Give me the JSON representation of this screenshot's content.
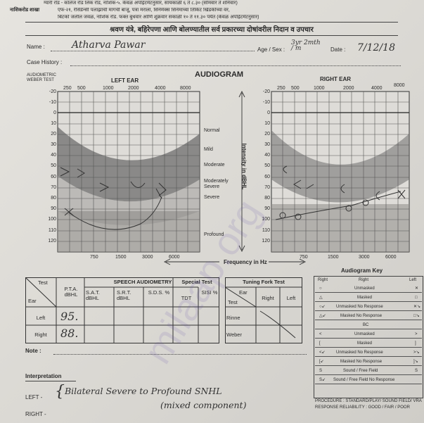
{
  "header": {
    "line1": "ग्यारी रोड - कॉलेज रोड लिंक रोड, नाशिक-५. केवळ अपॉईंटमेंटनुसार, सायंकाळी ६ ते ८.३० (सोमवार ते शनिवार)",
    "line2_label": "नाशिकरोड शाखा",
    "line2": "एफ-२१, रेसिडेन्सी पलाझाची मागची बाजू, पत्रा मराला, सिनेमॅक्स सिनेमाच्या तिकिट खिडकीच्या वर,",
    "line3": "बिटको जलील जवळ, नाशिक रोड. फक्त बुधवार आणि शुक्रवार सकाळी १० ते ११.३० पर्यंत (केवळ अपॉईंटमेंटनुसार)",
    "title": "श्रवण यंत्रे, बहिरेपणा आणि बोलण्यातील सर्व प्रकारच्या दोषांवरील निदान व उपचार"
  },
  "patient": {
    "name_label": "Name :",
    "name_value": "Atharva Pawar",
    "age_sex_label": "Age / Sex :",
    "age_sex_value": "3yr 2mth / m",
    "date_label": "Date :",
    "date_value": "7/12/18",
    "case_history_label": "Case History :"
  },
  "audiogram": {
    "title": "AUDIOGRAM",
    "left_ear": "LEFT EAR",
    "right_ear": "RIGHT EAR",
    "test_label": "AUDIOMETRIC WEBER TEST",
    "top_freqs_left": [
      "250",
      "500",
      "1000",
      "2000",
      "4000",
      "8000"
    ],
    "top_freqs_right": [
      "250",
      "500",
      "1000",
      "2000",
      "4000",
      "8000"
    ],
    "bottom_freqs": [
      "750",
      "1500",
      "3000",
      "6000"
    ],
    "db_ticks": [
      "-20",
      "-10",
      "0",
      "10",
      "20",
      "30",
      "40",
      "50",
      "60",
      "70",
      "80",
      "90",
      "100",
      "110",
      "120"
    ],
    "categories": [
      "Normal",
      "Mild",
      "Moderate",
      "Moderately Severe",
      "Severe",
      "Profound"
    ],
    "y_axis_label": "Intensity in dBHL",
    "x_axis_label": "Frequency in Hz"
  },
  "speech": {
    "test_label": "Test",
    "ear_label": "Ear",
    "pta_label": "P.T.A. dBHL",
    "speech_audiometry": "SPEECH AUDIOMETRY",
    "sat": "S.A.T. dBHL",
    "srt": "S.R.T. dBHL",
    "sds": "S.D.S. %",
    "special_test": "Special Test",
    "tdt": "TDT",
    "sisi": "SISI %",
    "left_label": "Left",
    "right_label": "Right",
    "left_pta": "95.",
    "right_pta": "88."
  },
  "tuning": {
    "title": "Tuning Fork Test",
    "ear_label": "Ear",
    "test_label": "Test",
    "right": "Right",
    "left": "Left",
    "rinne": "Rinne",
    "weber": "Weber"
  },
  "key": {
    "title": "Audiogram Key",
    "right": "Right",
    "right2": "Right",
    "left": "Left",
    "rows": [
      "Unmasked",
      "Masked",
      "Unmasked No Response",
      "Masked No Response",
      "BC",
      "Unmasked",
      "Masked",
      "Unmasked No Response",
      "Masked No Response",
      "Sound / Free Field",
      "Sound / Free Field No Response"
    ],
    "procedure": "PROCEDURE : STANDARD/PLAY/ SOUND FIELD/ VRA",
    "reliability": "RESPONSE RELIABILITY : GOOD / FAIR / POOR"
  },
  "notes": {
    "note_label": "Note :",
    "interpretation_label": "Interpretation",
    "left_label": "LEFT -",
    "right_label": "RIGHT -",
    "interpretation_text1": "Bilateral Severe to Profound SNHL",
    "interpretation_text2": "(mixed component)"
  },
  "watermark": "milaap.org"
}
